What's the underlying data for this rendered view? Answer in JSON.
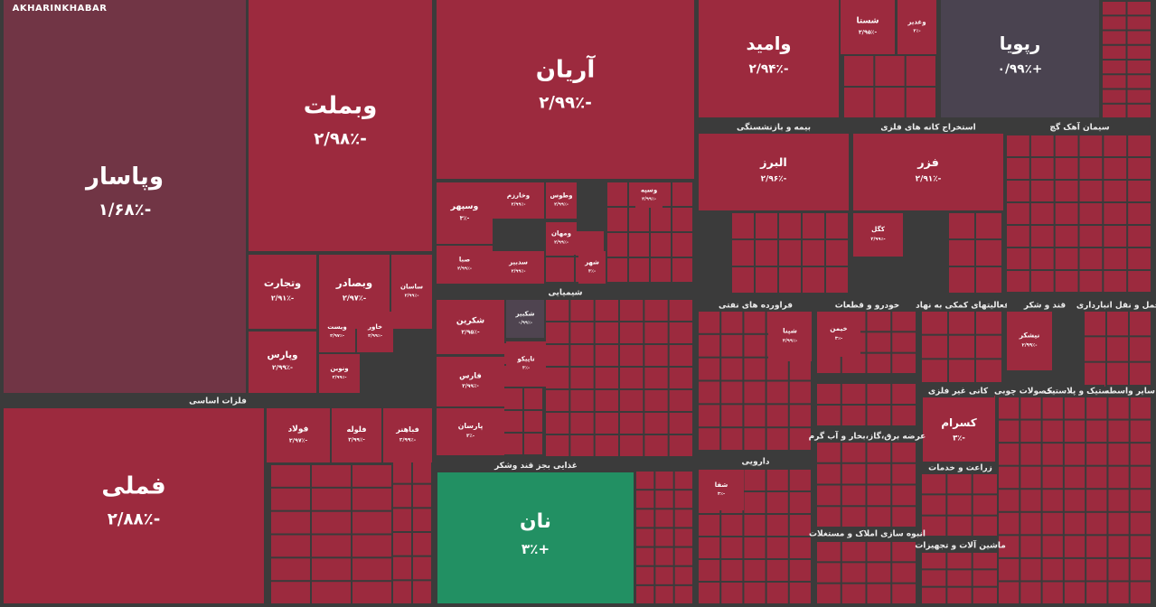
{
  "logo": "AKHARINKHABAR",
  "sectors": [
    "فلزات اساسی",
    "شیمیایی",
    "غذایی بجز قند وشکر",
    "بیمه و بازنشستگی",
    "استخراج کانه های فلزی",
    "سیمان آهک گچ",
    "فراورده های نفتی",
    "خودرو و قطعات",
    "فعالیتهای کمکی به نهاد",
    "قند و شکر",
    "حمل و نقل انبارداری",
    "دارویی",
    "عرضه برق،گاز،بخار و آب گرم",
    "زراعت و خدمات",
    "انبوه سازی املاک و مستغلات",
    "ماشین آلات و تجهیزات",
    "کانی غیر فلزی",
    "محصولات چوبی",
    "لاستیک و پلاستیک",
    "سایر واسطه"
  ],
  "tiles": [
    {
      "name": "وپاسار",
      "change": "-۱/۶۸٪",
      "color": "#713545"
    },
    {
      "name": "وبملت",
      "change": "-۲/۹۸٪",
      "color": "#9c2a3e"
    },
    {
      "name": "آریان",
      "change": "-۲/۹۹٪",
      "color": "#9c2a3e"
    },
    {
      "name": "وامید",
      "change": "-۲/۹۴٪",
      "color": "#9c2a3e"
    },
    {
      "name": "شستا",
      "change": "-۲/۹۵٪",
      "color": "#9c2a3e"
    },
    {
      "name": "وغدیر",
      "change": "-۳٪",
      "color": "#9c2a3e"
    },
    {
      "name": "رپویا",
      "change": "+۰/۹۹٪",
      "color": "#4a4350"
    },
    {
      "name": "فملی",
      "change": "-۲/۸۸٪",
      "color": "#9c2a3e"
    },
    {
      "name": "نان",
      "change": "+۳٪",
      "color": "#229063"
    },
    {
      "name": "وتجارت",
      "change": "-۲/۹۱٪",
      "color": "#9c2a3e"
    },
    {
      "name": "وبصادر",
      "change": "-۲/۹۷٪",
      "color": "#9c2a3e"
    },
    {
      "name": "ساسان",
      "change": "-۲/۹۹٪",
      "color": "#9c2a3e"
    },
    {
      "name": "وپارس",
      "change": "-۲/۹۹٪",
      "color": "#9c2a3e"
    },
    {
      "name": "ویست",
      "change": "-۲/۹۷٪",
      "color": "#9c2a3e"
    },
    {
      "name": "خاور",
      "change": "-۲/۹۹٪",
      "color": "#9c2a3e"
    },
    {
      "name": "ونوین",
      "change": "-۲/۹۹٪",
      "color": "#9c2a3e"
    },
    {
      "name": "وسپهر",
      "change": "-۳٪",
      "color": "#9c2a3e"
    },
    {
      "name": "صبا",
      "change": "-۲/۹۹٪",
      "color": "#9c2a3e"
    },
    {
      "name": "البرز",
      "change": "-۲/۹۶٪",
      "color": "#9c2a3e"
    },
    {
      "name": "فزر",
      "change": "-۲/۹۱٪",
      "color": "#9c2a3e"
    },
    {
      "name": "کسرام",
      "change": "-۳٪",
      "color": "#9c2a3e"
    },
    {
      "name": "شکرین",
      "change": "-۲/۹۵٪",
      "color": "#9c2a3e"
    },
    {
      "name": "فارس",
      "change": "-۲/۹۹٪",
      "color": "#9c2a3e"
    },
    {
      "name": "پارسان",
      "change": "-۳٪",
      "color": "#9c2a3e"
    },
    {
      "name": "شکبیر",
      "change": "-۰/۹۹٪",
      "color": "#4f4450"
    },
    {
      "name": "فولاد",
      "change": "-۲/۹۷٪",
      "color": "#9c2a3e"
    },
    {
      "name": "فلوله",
      "change": "-۲/۹۹٪",
      "color": "#9c2a3e"
    },
    {
      "name": "فباهنر",
      "change": "-۲/۹۹٪",
      "color": "#9c2a3e"
    },
    {
      "name": "تاپیکو",
      "change": "-۳٪",
      "color": "#9c2a3e"
    },
    {
      "name": "شپنا",
      "change": "-۲/۹۹٪",
      "color": "#9c2a3e"
    },
    {
      "name": "خیمن",
      "change": "-۳٪",
      "color": "#9c2a3e"
    },
    {
      "name": "شفا",
      "change": "-۳٪",
      "color": "#9c2a3e"
    },
    {
      "name": "کگل",
      "change": "-۲/۹۹٪",
      "color": "#9c2a3e"
    },
    {
      "name": "نیشکر",
      "change": "-۲/۹۹٪",
      "color": "#9c2a3e"
    },
    {
      "name": "وسپه",
      "change": "-۲/۹۹٪",
      "color": "#9c2a3e"
    },
    {
      "name": "وطوس",
      "change": "-۲/۹۹٪",
      "color": "#9c2a3e"
    },
    {
      "name": "ومهان",
      "change": "-۲/۹۹٪",
      "color": "#9c2a3e"
    },
    {
      "name": "شهر",
      "change": "-۳٪",
      "color": "#9c2a3e"
    },
    {
      "name": "وخارزم",
      "change": "-۲/۹۹٪",
      "color": "#9c2a3e"
    },
    {
      "name": "سدبیر",
      "change": "-۲/۹۹٪",
      "color": "#9c2a3e"
    }
  ]
}
